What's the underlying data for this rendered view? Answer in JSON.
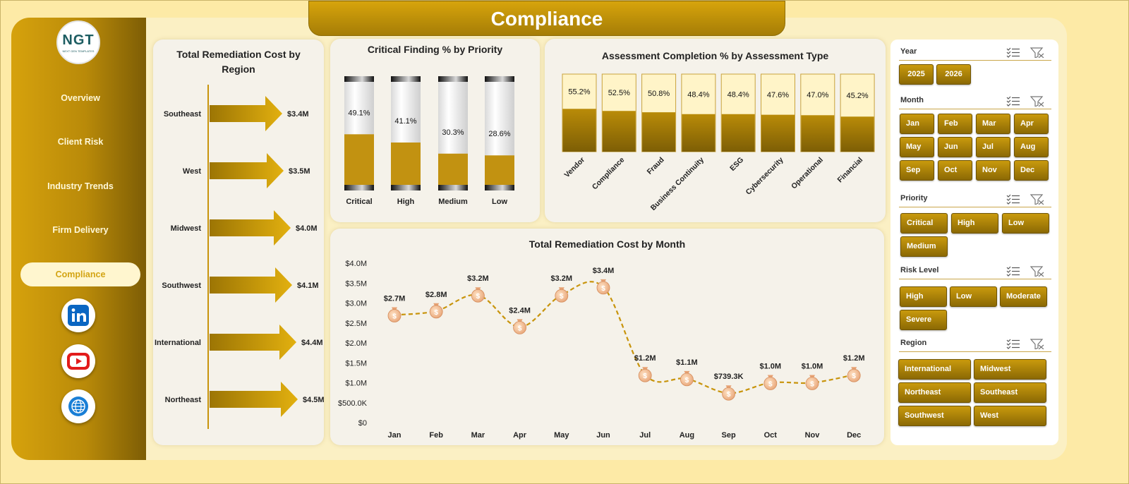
{
  "title": "Compliance",
  "logo": {
    "main": "NGT",
    "sub": "NEXT GEN TEMPLATES"
  },
  "nav": [
    "Overview",
    "Client Risk",
    "Industry Trends",
    "Firm Delivery",
    "Compliance"
  ],
  "social": [
    "linkedin-icon",
    "youtube-icon",
    "globe-icon"
  ],
  "colors": {
    "gold": "#c99a0d",
    "gold_dark": "#8b6904",
    "cream": "#fbf0c4",
    "line": "#c8940c"
  },
  "region_chart_title": "Total Remediation Cost by Region",
  "priority_chart_title": "Critical Finding % by Priority",
  "assessment_chart_title": "Assessment Completion % by Assessment Type",
  "month_chart_title": "Total Remediation Cost by Month",
  "chart_data": [
    {
      "type": "bar",
      "title": "Total Remediation Cost by Region",
      "orientation": "horizontal",
      "categories": [
        "Southeast",
        "West",
        "Midwest",
        "Southwest",
        "International",
        "Northeast"
      ],
      "values": [
        3.4,
        3.5,
        4.0,
        4.1,
        4.4,
        4.5
      ],
      "labels": [
        "$3.4M",
        "$3.5M",
        "$4.0M",
        "$4.1M",
        "$4.4M",
        "$4.5M"
      ],
      "unit": "$M"
    },
    {
      "type": "bar",
      "title": "Critical Finding % by Priority",
      "categories": [
        "Critical",
        "High",
        "Medium",
        "Low"
      ],
      "values": [
        49.1,
        41.1,
        30.3,
        28.6
      ],
      "labels": [
        "49.1%",
        "41.1%",
        "30.3%",
        "28.6%"
      ],
      "ylim": [
        0,
        100
      ]
    },
    {
      "type": "bar",
      "title": "Assessment Completion % by Assessment Type",
      "categories": [
        "Vendor",
        "Compliance",
        "Fraud",
        "Business Continuity",
        "ESG",
        "Cybersecurity",
        "Operational",
        "Financial"
      ],
      "values": [
        55.2,
        52.5,
        50.8,
        48.4,
        48.4,
        47.6,
        47.0,
        45.2
      ],
      "labels": [
        "55.2%",
        "52.5%",
        "50.8%",
        "48.4%",
        "48.4%",
        "47.6%",
        "47.0%",
        "45.2%"
      ],
      "ylim": [
        0,
        100
      ]
    },
    {
      "type": "line",
      "title": "Total Remediation Cost by Month",
      "categories": [
        "Jan",
        "Feb",
        "Mar",
        "Apr",
        "May",
        "Jun",
        "Jul",
        "Aug",
        "Sep",
        "Oct",
        "Nov",
        "Dec"
      ],
      "values": [
        2.7,
        2.8,
        3.2,
        2.4,
        3.2,
        3.4,
        1.2,
        1.1,
        0.7393,
        1.0,
        1.0,
        1.2
      ],
      "labels": [
        "$2.7M",
        "$2.8M",
        "$3.2M",
        "$2.4M",
        "$3.2M",
        "$3.4M",
        "$1.2M",
        "$1.1M",
        "$739.3K",
        "$1.0M",
        "$1.0M",
        "$1.2M"
      ],
      "yticks": [
        "$0",
        "$500.0K",
        "$1.0M",
        "$1.5M",
        "$2.0M",
        "$2.5M",
        "$3.0M",
        "$3.5M",
        "$4.0M"
      ],
      "ylim": [
        0,
        4.0
      ],
      "unit": "$M"
    }
  ],
  "filters": {
    "year": {
      "label": "Year",
      "options": [
        "2025",
        "2026"
      ]
    },
    "month": {
      "label": "Month",
      "options": [
        "Jan",
        "Feb",
        "Mar",
        "Apr",
        "May",
        "Jun",
        "Jul",
        "Aug",
        "Sep",
        "Oct",
        "Nov",
        "Dec"
      ]
    },
    "priority": {
      "label": "Priority",
      "options": [
        "Critical",
        "High",
        "Low",
        "Medium"
      ]
    },
    "risk": {
      "label": "Risk Level",
      "options": [
        "High",
        "Low",
        "Moderate",
        "Severe"
      ]
    },
    "region": {
      "label": "Region",
      "options": [
        "International",
        "Midwest",
        "Northeast",
        "Southeast",
        "Southwest",
        "West"
      ]
    }
  }
}
